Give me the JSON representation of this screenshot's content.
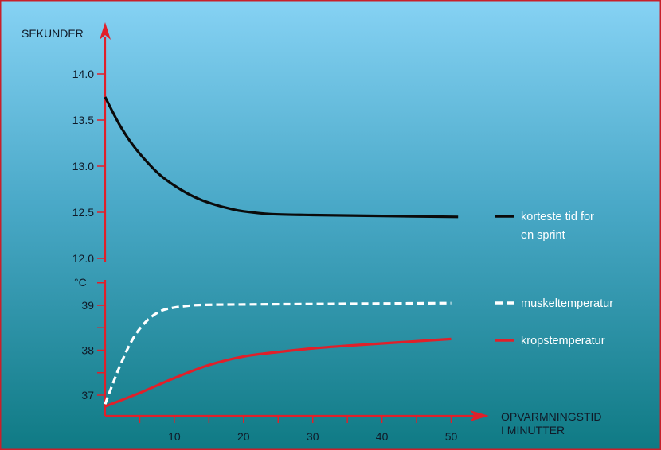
{
  "chart_data": {
    "type": "line",
    "x_axis": {
      "label_lines": [
        "OPVARMNINGSTID",
        "I MINUTTER"
      ],
      "ticks": [
        10,
        20,
        30,
        40,
        50
      ],
      "minor_ticks": [
        5,
        15,
        25,
        35,
        45
      ],
      "range": [
        0,
        55
      ]
    },
    "panels": [
      {
        "id": "time",
        "y_label": "SEKUNDER",
        "y_range": [
          11.95,
          14.5
        ],
        "y_ticks": [
          14.0,
          13.5,
          13.0,
          12.5,
          12.0
        ],
        "y_tick_labels": [
          "14.0",
          "13.5",
          "13.0",
          "12.5",
          "12.0"
        ],
        "series": [
          {
            "name": "korteste tid for en sprint",
            "legend_lines": [
              "korteste tid for",
              "en sprint"
            ],
            "color": "#0b0b0b",
            "style": "solid",
            "points": [
              [
                0,
                13.75
              ],
              [
                2,
                13.46
              ],
              [
                4,
                13.23
              ],
              [
                6,
                13.05
              ],
              [
                8,
                12.9
              ],
              [
                10,
                12.79
              ],
              [
                12,
                12.7
              ],
              [
                14,
                12.63
              ],
              [
                16,
                12.58
              ],
              [
                18,
                12.54
              ],
              [
                20,
                12.51
              ],
              [
                24,
                12.48
              ],
              [
                30,
                12.47
              ],
              [
                40,
                12.46
              ],
              [
                51,
                12.45
              ]
            ]
          }
        ]
      },
      {
        "id": "temperature",
        "y_label": "°C",
        "y_range": [
          36.5,
          39.55
        ],
        "y_ticks": [
          39,
          38,
          37
        ],
        "y_tick_labels": [
          "39",
          "38",
          "37"
        ],
        "y_minor_ticks": [
          39.5,
          38.5,
          37.5
        ],
        "series": [
          {
            "name": "muskeltemperatur",
            "legend_lines": [
              "muskeltemperatur"
            ],
            "color": "#ffffff",
            "style": "dashed",
            "points": [
              [
                0,
                36.8
              ],
              [
                2,
                37.6
              ],
              [
                4,
                38.25
              ],
              [
                6,
                38.65
              ],
              [
                8,
                38.87
              ],
              [
                10,
                38.95
              ],
              [
                12,
                38.99
              ],
              [
                14,
                39.01
              ],
              [
                20,
                39.02
              ],
              [
                30,
                39.03
              ],
              [
                40,
                39.04
              ],
              [
                50,
                39.05
              ]
            ]
          },
          {
            "name": "kropstemperatur",
            "legend_lines": [
              "kropstemperatur"
            ],
            "color": "#e0202a",
            "style": "solid",
            "points": [
              [
                0,
                36.75
              ],
              [
                5,
                37.05
              ],
              [
                10,
                37.38
              ],
              [
                15,
                37.67
              ],
              [
                20,
                37.86
              ],
              [
                25,
                37.96
              ],
              [
                30,
                38.04
              ],
              [
                35,
                38.1
              ],
              [
                40,
                38.15
              ],
              [
                45,
                38.2
              ],
              [
                50,
                38.25
              ]
            ]
          }
        ]
      }
    ]
  },
  "colors": {
    "axis": "#e0202a",
    "tick_text": "#101a28",
    "border": "#c8202a",
    "background_top": "#86d2f4",
    "background_bottom": "#0f7a84"
  }
}
